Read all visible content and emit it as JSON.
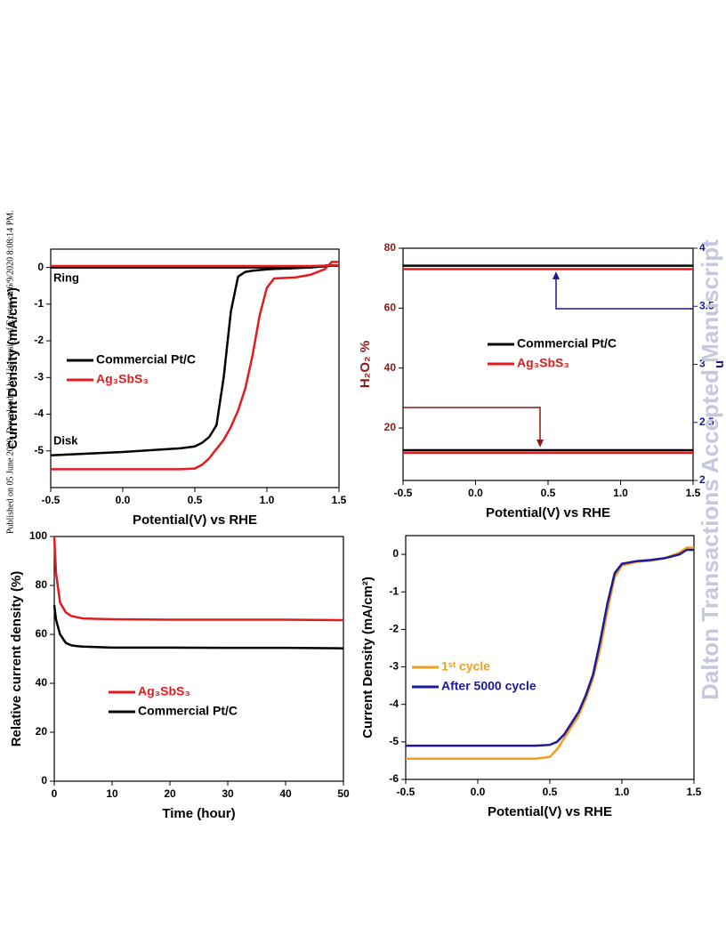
{
  "page": {
    "side_note": "Published on 05 June 2020. Downloaded by University of Exeter on 6/9/2020 8:08:14 PM.",
    "watermark": "Dalton Transactions Accepted Manuscript"
  },
  "chart_data": [
    {
      "type": "line",
      "xlabel": "Potential(V) vs RHE",
      "ylabel": "Current Density  (mA/cm²)",
      "annotations": [
        "Ring",
        "Disk"
      ],
      "x": [
        -0.5,
        0,
        0.4,
        0.5,
        0.55,
        0.6,
        0.65,
        0.7,
        0.75,
        0.8,
        0.85,
        0.9,
        0.95,
        1.0,
        1.05,
        1.2,
        1.3,
        1.4,
        1.45,
        1.5
      ],
      "xlim": [
        -0.5,
        1.5
      ],
      "xticks": [
        -0.5,
        {
          "value": 0,
          "label": "0.0"
        },
        0.5,
        {
          "value": 1,
          "label": "1.0"
        },
        1.5
      ],
      "ylim": [
        -6,
        0.5
      ],
      "yticks": [
        0,
        -1,
        -2,
        -3,
        -4,
        -5
      ],
      "series": [
        {
          "name": "Commercial Pt/C",
          "color": "#000000",
          "values": [
            -5.12,
            -5.03,
            -4.93,
            -4.88,
            -4.78,
            -4.62,
            -4.3,
            -3.0,
            -1.2,
            -0.25,
            -0.12,
            -0.09,
            -0.07,
            -0.05,
            -0.04,
            -0.02,
            0.0,
            0.05,
            0.06,
            0.06
          ],
          "ring_values": [
            0,
            0,
            0,
            0,
            0,
            0,
            0,
            0,
            0,
            0,
            0,
            0,
            0,
            0,
            0,
            0,
            0,
            0.03,
            0.05,
            0.05
          ]
        },
        {
          "name": "Ag₃SbS₃",
          "color": "#e41a1c",
          "values": [
            -5.5,
            -5.5,
            -5.5,
            -5.48,
            -5.38,
            -5.2,
            -4.95,
            -4.7,
            -4.35,
            -3.9,
            -3.3,
            -2.4,
            -1.3,
            -0.55,
            -0.3,
            -0.27,
            -0.2,
            -0.05,
            0.15,
            0.15
          ],
          "ring_values": [
            0.04,
            0.04,
            0.04,
            0.04,
            0.04,
            0.04,
            0.04,
            0.04,
            0.04,
            0.04,
            0.04,
            0.04,
            0.04,
            0.04,
            0.04,
            0.04,
            0.04,
            0.05,
            0.06,
            0.06
          ]
        }
      ]
    },
    {
      "type": "line",
      "xlabel": "Potential(V) vs RHE",
      "ylabel": "H₂O₂ %",
      "y2label": "n",
      "y_color": "#8b1a1a",
      "y2_color": "#1a1a8b",
      "x": [
        -0.5,
        1.5
      ],
      "xlim": [
        -0.5,
        1.5
      ],
      "xticks": [
        -0.5,
        {
          "value": 0,
          "label": "0.0"
        },
        0.5,
        {
          "value": 1,
          "label": "1.0"
        },
        1.5
      ],
      "ylim": [
        2.5,
        80
      ],
      "yticks": [
        20,
        40,
        60,
        80
      ],
      "y2lim": [
        2,
        4
      ],
      "y2ticks": [
        2,
        2.5,
        3,
        3.5,
        4
      ],
      "series": [
        {
          "name": "Commercial Pt/C",
          "color": "#000000",
          "values": [
            12.6,
            12.6
          ]
        },
        {
          "name": "Ag₃SbS₃",
          "color": "#e41a1c",
          "values": [
            11.7,
            11.7
          ]
        },
        {
          "color": "#000000",
          "axis": "y2",
          "values": [
            3.85,
            3.85
          ]
        },
        {
          "color": "#e41a1c",
          "axis": "y2",
          "values": [
            3.82,
            3.82
          ]
        }
      ]
    },
    {
      "type": "line",
      "xlabel": "Time (hour)",
      "ylabel": "Relative current density (%)",
      "x": [
        0,
        0.3,
        1,
        2,
        3,
        4,
        5,
        10,
        20,
        30,
        40,
        50
      ],
      "xlim": [
        0,
        50
      ],
      "xticks": [
        0,
        10,
        20,
        30,
        40,
        50
      ],
      "ylim": [
        0,
        100
      ],
      "yticks": [
        0,
        20,
        40,
        60,
        80,
        100
      ],
      "series": [
        {
          "name": "Ag₃SbS₃",
          "color": "#e41a1c",
          "values": [
            100,
            85,
            73,
            69,
            67.5,
            67,
            66.5,
            66.2,
            66,
            66,
            66,
            65.8
          ]
        },
        {
          "name": "Commercial Pt/C",
          "color": "#000000",
          "values": [
            72,
            66,
            60,
            56.5,
            55.5,
            55.2,
            55,
            54.6,
            54.6,
            54.5,
            54.5,
            54.3
          ]
        }
      ]
    },
    {
      "type": "line",
      "xlabel": "Potential(V) vs RHE",
      "ylabel": "Current Density  (mA/cm²)",
      "x": [
        -0.5,
        0,
        0.4,
        0.5,
        0.55,
        0.6,
        0.65,
        0.7,
        0.75,
        0.8,
        0.85,
        0.9,
        0.95,
        1.0,
        1.1,
        1.2,
        1.3,
        1.4,
        1.45,
        1.5
      ],
      "xlim": [
        -0.5,
        1.5
      ],
      "xticks": [
        -0.5,
        {
          "value": 0,
          "label": "0.0"
        },
        0.5,
        {
          "value": 1,
          "label": "1.0"
        },
        1.5
      ],
      "ylim": [
        -6,
        0.5
      ],
      "yticks": [
        0,
        -1,
        -2,
        -3,
        -4,
        -5,
        -6
      ],
      "series": [
        {
          "name": "1ˢᵗ cycle",
          "color": "#f39c1f",
          "values": [
            -5.45,
            -5.45,
            -5.45,
            -5.4,
            -5.2,
            -4.9,
            -4.6,
            -4.3,
            -3.85,
            -3.3,
            -2.5,
            -1.5,
            -0.6,
            -0.3,
            -0.2,
            -0.17,
            -0.1,
            0.05,
            0.18,
            0.18
          ]
        },
        {
          "name": "After 5000 cycle",
          "color": "#1a1a9a",
          "values": [
            -5.1,
            -5.1,
            -5.1,
            -5.08,
            -5.0,
            -4.8,
            -4.5,
            -4.2,
            -3.75,
            -3.2,
            -2.3,
            -1.3,
            -0.5,
            -0.25,
            -0.18,
            -0.15,
            -0.1,
            0.0,
            0.12,
            0.12
          ]
        }
      ]
    }
  ]
}
